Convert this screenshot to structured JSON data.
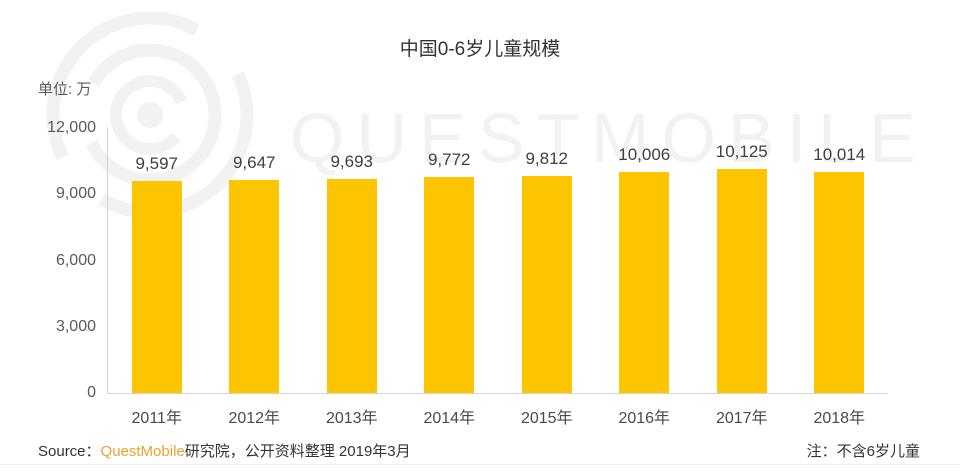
{
  "header": {
    "title": "中国0-6岁儿童规模",
    "unit_label": "单位: 万"
  },
  "watermark": {
    "text": "QUESTMOBILE"
  },
  "chart_data": {
    "type": "bar",
    "title": "中国0-6岁儿童规模",
    "unit": "万",
    "categories": [
      "2011年",
      "2012年",
      "2013年",
      "2014年",
      "2015年",
      "2016年",
      "2017年",
      "2018年"
    ],
    "values": [
      9597,
      9647,
      9693,
      9772,
      9812,
      10006,
      10125,
      10014
    ],
    "value_labels": [
      "9,597",
      "9,647",
      "9,693",
      "9,772",
      "9,812",
      "10,006",
      "10,125",
      "10,014"
    ],
    "y_tick_labels": [
      "12,000",
      "9,000",
      "6,000",
      "3,000",
      "0"
    ],
    "y_tick_values": [
      12000,
      9000,
      6000,
      3000,
      0
    ],
    "ylim": [
      0,
      12000
    ],
    "grid": false,
    "legend": null,
    "bar_color": "#FDC500",
    "axis_color": "#d4d4d4"
  },
  "footer": {
    "source_prefix": "Source：",
    "source_brand": "QuestMobile",
    "source_suffix": "研究院，公开资料整理 2019年3月",
    "note": "注：不含6岁儿童"
  }
}
